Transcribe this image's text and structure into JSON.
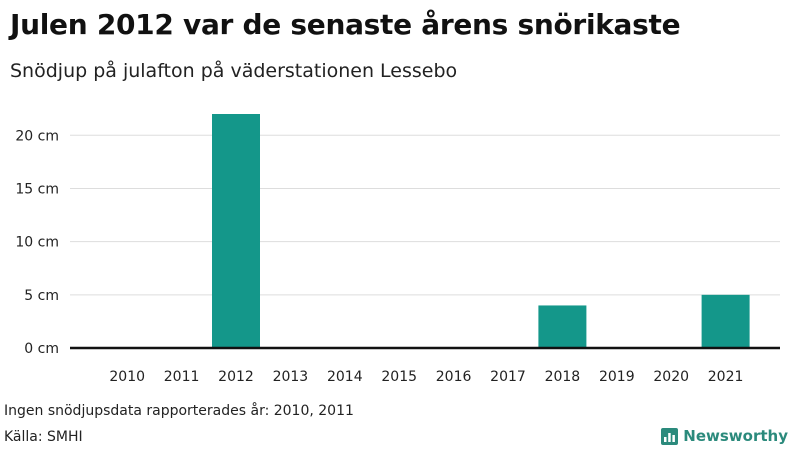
{
  "header": {
    "title": "Julen 2012 var de senaste årens snörikaste",
    "subtitle": "Snödjup på julafton på väderstationen Lessebo"
  },
  "footer": {
    "note": "Ingen snödjupsdata rapporterades år: 2010, 2011",
    "source": "Källa: SMHI",
    "brand": "Newsworthy",
    "brand_icon": "bar-chart-logo-icon"
  },
  "colors": {
    "bar": "#14978a",
    "grid": "#dddddd",
    "axis": "#111111",
    "brand": "#2b8a7c"
  },
  "chart_data": {
    "type": "bar",
    "categories": [
      "2010",
      "2011",
      "2012",
      "2013",
      "2014",
      "2015",
      "2016",
      "2017",
      "2018",
      "2019",
      "2020",
      "2021"
    ],
    "values": [
      0,
      0,
      22,
      0,
      0,
      0,
      0,
      0,
      4,
      0,
      0,
      5
    ],
    "ylim": [
      0,
      22
    ],
    "yticks": [
      0,
      5,
      10,
      15,
      20
    ],
    "ytick_labels": [
      "0 cm",
      "5 cm",
      "10 cm",
      "15 cm",
      "20 cm"
    ],
    "grid": true,
    "legend": "none"
  }
}
